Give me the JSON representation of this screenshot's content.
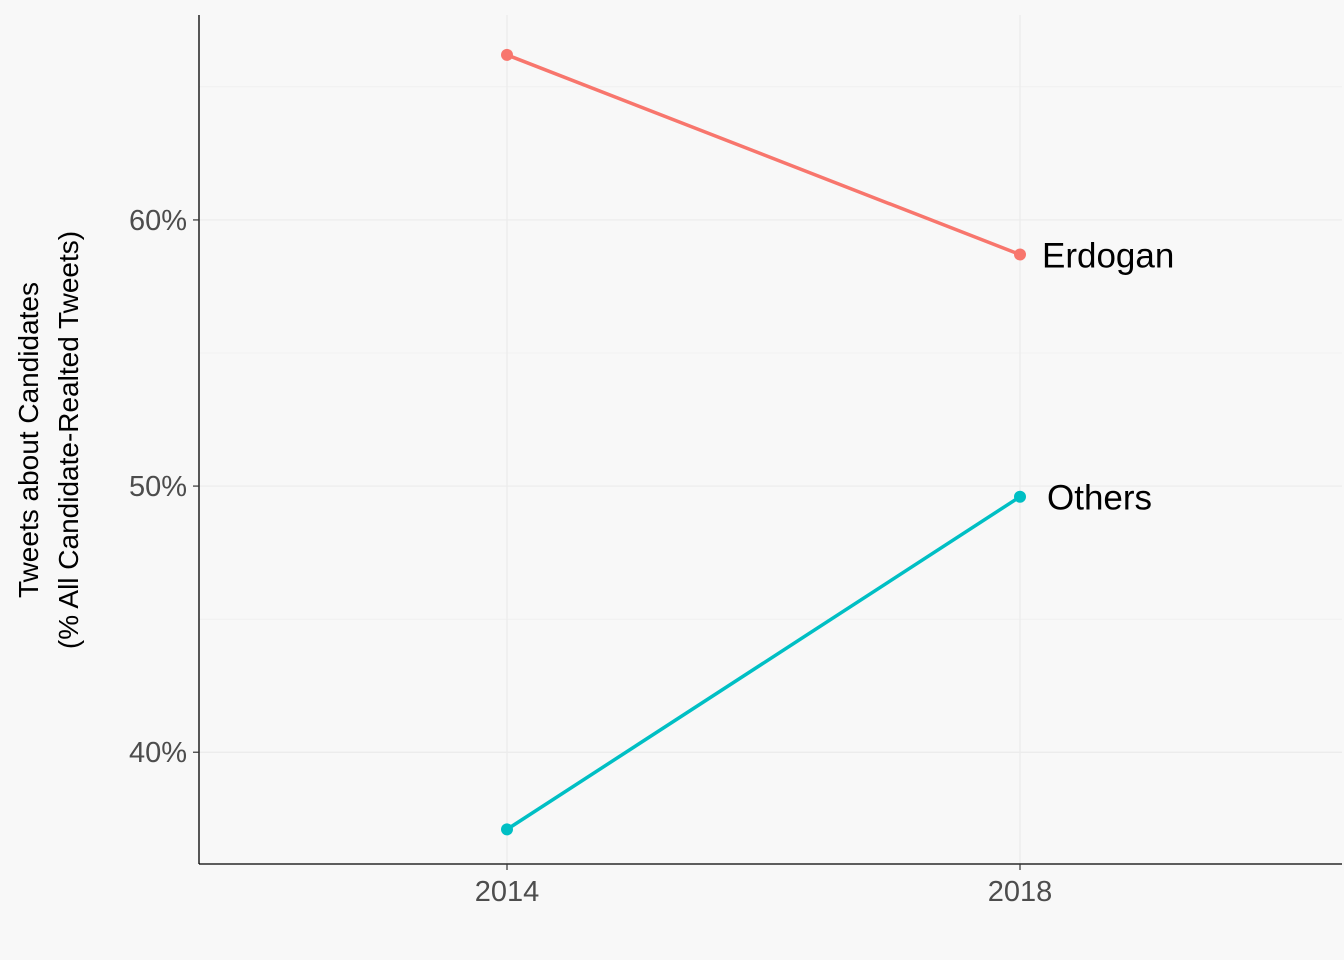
{
  "chart_data": {
    "type": "line",
    "x": [
      "2014",
      "2018"
    ],
    "series": [
      {
        "name": "Erdogan",
        "values": [
          66.2,
          58.7
        ],
        "color": "#F8766D"
      },
      {
        "name": "Others",
        "values": [
          37.1,
          49.6
        ],
        "color": "#00BFC4"
      }
    ],
    "title": "",
    "xlabel": "",
    "ylabel": "Tweets about Candidates",
    "ylabel_line2": "(% All Candidate-Realted Tweets)",
    "ylim": [
      35.8,
      67.7
    ],
    "yticks": [
      40,
      50,
      60
    ],
    "ytick_labels": [
      "40%",
      "50%",
      "60%"
    ],
    "grid": true,
    "legend": "direct labels at line ends"
  },
  "colors": {
    "background": "#f8f8f8",
    "grid": "#ebebeb",
    "axis": "#000000"
  }
}
